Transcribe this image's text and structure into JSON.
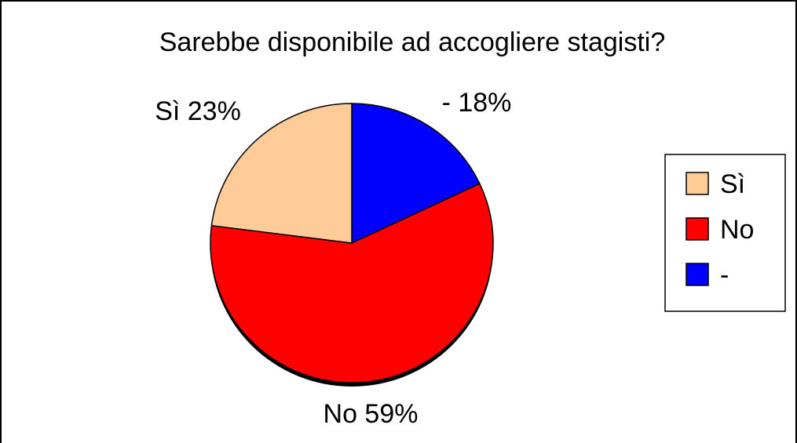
{
  "chart_data": {
    "type": "pie",
    "title": "Sarebbe disponibile ad accogliere stagisti?",
    "slices": [
      {
        "name": "Sì",
        "value": 23,
        "label": "Sì 23%"
      },
      {
        "name": "No",
        "value": 59,
        "label": "No 59%"
      },
      {
        "name": "-",
        "value": 18,
        "label": "- 18%"
      }
    ],
    "legend": {
      "placement": "right",
      "entries": [
        "Sì",
        "No",
        "-"
      ]
    },
    "colors": {
      "Sì": "#FFCC99",
      "No": "#FF0000",
      "-": "#0000FF"
    }
  }
}
